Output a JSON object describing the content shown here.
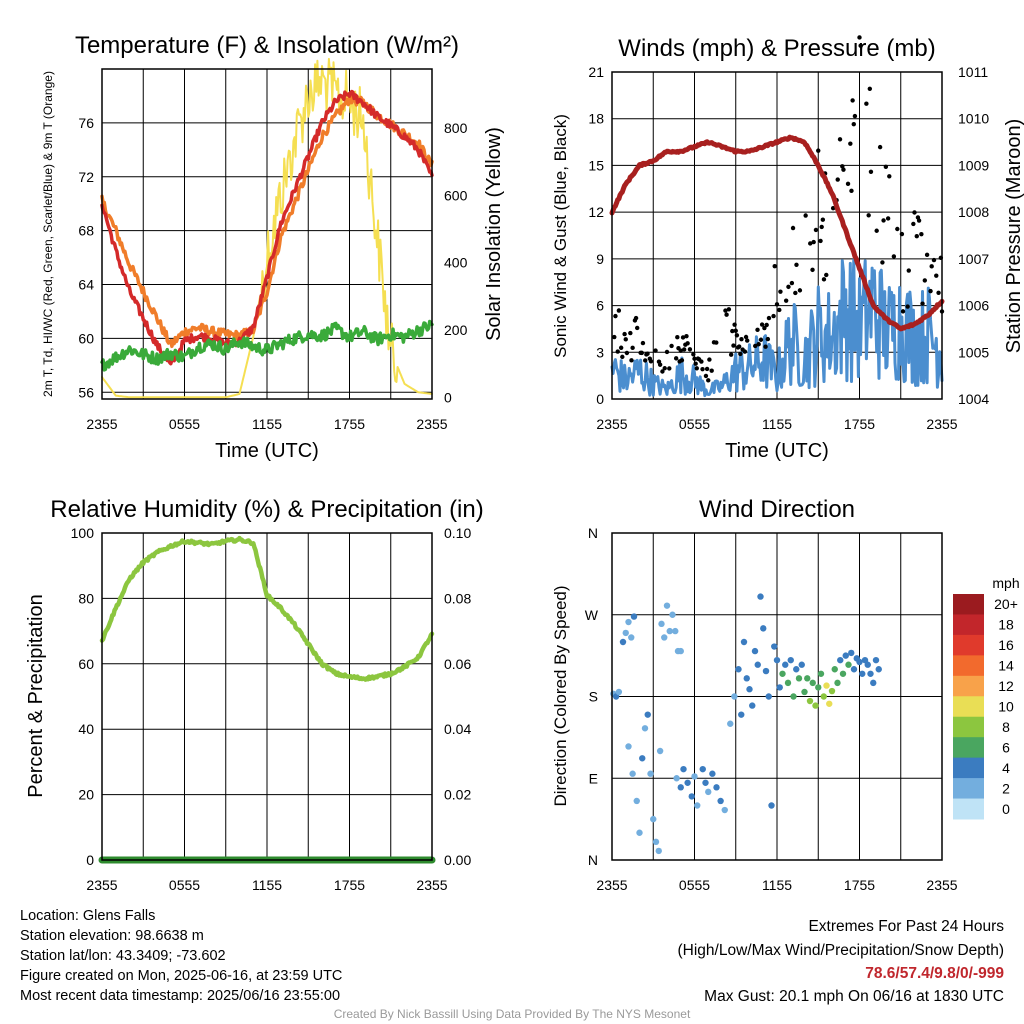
{
  "time_ticks": [
    "2355",
    "0555",
    "1155",
    "1755",
    "2355"
  ],
  "chart_data": [
    {
      "type": "line",
      "title": "Temperature (F) & Insolation (W/m²)",
      "xlabel": "Time (UTC)",
      "ylabel": "2m T, Td, HI/WC (Red, Green, Scarlet/Blue) & 9m T (Orange)",
      "y2label": "Solar Insolation (Yellow)",
      "x_hours": [
        0,
        1,
        2,
        3,
        4,
        5,
        6,
        7,
        8,
        9,
        10,
        11,
        12,
        13,
        14,
        15,
        16,
        17,
        18,
        19,
        20,
        21,
        22,
        23,
        24
      ],
      "ylim": [
        55.5,
        80
      ],
      "yticks": [
        56,
        60,
        64,
        68,
        72,
        76
      ],
      "y2lim": [
        -5,
        975
      ],
      "y2ticks": [
        0,
        200,
        400,
        600,
        800
      ],
      "grid": true,
      "series": [
        {
          "axis": "left",
          "color": "#d42a2a",
          "values": [
            70.0,
            66.5,
            63.5,
            61.5,
            59.5,
            58.0,
            59.8,
            60.2,
            60.0,
            59.6,
            59.8,
            60.8,
            64.5,
            68.5,
            71.0,
            73.5,
            76.0,
            77.6,
            78.2,
            77.5,
            76.5,
            75.8,
            75.0,
            74.0,
            72.0
          ]
        },
        {
          "axis": "left",
          "color": "#f07d2a",
          "values": [
            70.2,
            68.0,
            65.5,
            63.5,
            61.5,
            59.5,
            60.5,
            60.8,
            60.5,
            60.3,
            60.2,
            60.6,
            63.5,
            67.5,
            70.0,
            72.5,
            75.0,
            76.5,
            77.8,
            77.5,
            76.6,
            75.9,
            75.2,
            74.5,
            72.8
          ]
        },
        {
          "axis": "left",
          "color": "#3aaa3a",
          "values": [
            58.0,
            58.6,
            59.2,
            58.8,
            58.5,
            58.9,
            58.6,
            59.4,
            59.6,
            59.2,
            59.8,
            59.4,
            59.1,
            59.6,
            60.0,
            60.3,
            60.2,
            60.7,
            60.1,
            60.5,
            59.9,
            60.3,
            60.1,
            60.6,
            61.0
          ]
        },
        {
          "axis": "right",
          "color": "#f5df52",
          "values": [
            60,
            5,
            0,
            0,
            0,
            0,
            0,
            0,
            0,
            0,
            10,
            180,
            420,
            600,
            760,
            900,
            940,
            900,
            880,
            820,
            480,
            140,
            40,
            15,
            10
          ]
        }
      ]
    },
    {
      "type": "line",
      "title": "Winds (mph) & Pressure (mb)",
      "xlabel": "Time (UTC)",
      "ylabel": "Sonic Wind & Gust (Blue, Black)",
      "y2label": "Station Pressure (Maroon)",
      "x_hours": [
        0,
        1,
        2,
        3,
        4,
        5,
        6,
        7,
        8,
        9,
        10,
        11,
        12,
        13,
        14,
        15,
        16,
        17,
        18,
        19,
        20,
        21,
        22,
        23,
        24
      ],
      "ylim": [
        0,
        21
      ],
      "yticks": [
        0,
        3,
        6,
        9,
        12,
        15,
        18,
        21
      ],
      "y2lim": [
        1004,
        1011
      ],
      "y2ticks": [
        1004,
        1005,
        1006,
        1007,
        1008,
        1009,
        1010,
        1011
      ],
      "grid": true,
      "series": [
        {
          "name": "Pressure",
          "axis": "right",
          "color": "#a8201f",
          "values": [
            1008.0,
            1008.6,
            1009.0,
            1009.1,
            1009.3,
            1009.3,
            1009.4,
            1009.5,
            1009.4,
            1009.3,
            1009.3,
            1009.4,
            1009.5,
            1009.6,
            1009.5,
            1009.0,
            1008.4,
            1007.6,
            1006.8,
            1006.0,
            1005.7,
            1005.5,
            1005.6,
            1005.8,
            1006.1
          ]
        },
        {
          "name": "Wind",
          "axis": "left",
          "color": "#4b8ecf",
          "values": [
            2.0,
            1.2,
            1.8,
            1.0,
            0.6,
            1.6,
            1.2,
            0.5,
            0.8,
            1.8,
            2.0,
            2.6,
            1.5,
            3.8,
            2.6,
            4.2,
            4.0,
            5.8,
            4.6,
            6.0,
            4.2,
            5.0,
            3.8,
            4.2,
            3.0
          ]
        },
        {
          "name": "Gust",
          "axis": "left",
          "color": "#000000",
          "type": "scatter",
          "values": [
            5.5,
            3.0,
            4.2,
            2.3,
            2.6,
            3.8,
            2.3,
            1.8,
            5.0,
            3.6,
            3.2,
            4.8,
            6.8,
            8.5,
            9.8,
            12.5,
            10.5,
            13.8,
            17.5,
            14.2,
            12.2,
            8.5,
            9.2,
            8.0,
            7.5
          ]
        }
      ]
    },
    {
      "type": "line",
      "title": "Relative Humidity (%) & Precipitation (in)",
      "xlabel": "",
      "ylabel": "Percent & Precipitation",
      "x_hours": [
        0,
        1,
        2,
        3,
        4,
        5,
        6,
        7,
        8,
        9,
        10,
        11,
        12,
        13,
        14,
        15,
        16,
        17,
        18,
        19,
        20,
        21,
        22,
        23,
        24
      ],
      "ylim": [
        0,
        100
      ],
      "yticks": [
        0,
        20,
        40,
        60,
        80,
        100
      ],
      "y2lim": [
        0,
        0.1
      ],
      "y2ticks": [
        "0.00",
        "0.02",
        "0.04",
        "0.06",
        "0.08",
        "0.10"
      ],
      "grid": true,
      "series": [
        {
          "name": "RH",
          "axis": "left",
          "color": "#8cc63f",
          "values": [
            67,
            77,
            86,
            91,
            94,
            96,
            97.5,
            97,
            96.5,
            97.5,
            98,
            97,
            81,
            77,
            72,
            66,
            60,
            57,
            56,
            55.5,
            56,
            57,
            59,
            62,
            69
          ]
        },
        {
          "name": "Precipitation",
          "axis": "right",
          "color": "#2e8b2e",
          "values": [
            0,
            0,
            0,
            0,
            0,
            0,
            0,
            0,
            0,
            0,
            0,
            0,
            0,
            0,
            0,
            0,
            0,
            0,
            0,
            0,
            0,
            0,
            0,
            0,
            0
          ]
        }
      ]
    },
    {
      "type": "scatter",
      "title": "Wind Direction",
      "xlabel": "",
      "ylabel": "Direction (Colored By Speed)",
      "ytick_labels": [
        "N",
        "E",
        "S",
        "W",
        "N"
      ],
      "ylim": [
        0,
        360
      ],
      "grid": true,
      "colorbar": {
        "title": "mph",
        "labels": [
          "20+",
          "18",
          "16",
          "14",
          "12",
          "10",
          "8",
          "6",
          "4",
          "2",
          "0"
        ],
        "colors": [
          "#9b1b1f",
          "#c2262b",
          "#e03a2c",
          "#f26a2d",
          "#f8a24a",
          "#e9de55",
          "#8cc63f",
          "#4aa660",
          "#3b7cc0",
          "#73aede",
          "#bfe3f6"
        ]
      },
      "points": [
        [
          0.1,
          183,
          2
        ],
        [
          0.3,
          180,
          3
        ],
        [
          0.5,
          185,
          2
        ],
        [
          0.8,
          240,
          3
        ],
        [
          1.0,
          250,
          2
        ],
        [
          1.2,
          262,
          1
        ],
        [
          1.4,
          245,
          1
        ],
        [
          1.6,
          268,
          3
        ],
        [
          1.2,
          125,
          2
        ],
        [
          1.5,
          95,
          2
        ],
        [
          1.8,
          65,
          1
        ],
        [
          2.0,
          30,
          1
        ],
        [
          2.2,
          112,
          3
        ],
        [
          2.4,
          145,
          2
        ],
        [
          2.6,
          160,
          3
        ],
        [
          2.8,
          95,
          1
        ],
        [
          3.0,
          45,
          1
        ],
        [
          3.2,
          20,
          1
        ],
        [
          3.4,
          10,
          1
        ],
        [
          3.5,
          120,
          2
        ],
        [
          3.6,
          260,
          1
        ],
        [
          3.8,
          245,
          1
        ],
        [
          4.0,
          280,
          2
        ],
        [
          4.2,
          252,
          1
        ],
        [
          4.4,
          270,
          1
        ],
        [
          4.6,
          252,
          1
        ],
        [
          4.8,
          230,
          1
        ],
        [
          5.0,
          230,
          2
        ],
        [
          4.7,
          90,
          1
        ],
        [
          5.0,
          80,
          3
        ],
        [
          5.2,
          100,
          3
        ],
        [
          5.5,
          85,
          3
        ],
        [
          5.8,
          70,
          3
        ],
        [
          6.0,
          92,
          2
        ],
        [
          6.2,
          60,
          1
        ],
        [
          6.6,
          100,
          3
        ],
        [
          6.8,
          85,
          3
        ],
        [
          7.0,
          75,
          2
        ],
        [
          7.3,
          95,
          3
        ],
        [
          7.6,
          80,
          3
        ],
        [
          7.9,
          65,
          3
        ],
        [
          8.2,
          55,
          2
        ],
        [
          8.6,
          150,
          2
        ],
        [
          8.9,
          180,
          2
        ],
        [
          9.2,
          210,
          3
        ],
        [
          9.4,
          160,
          3
        ],
        [
          9.6,
          240,
          3
        ],
        [
          9.8,
          200,
          3
        ],
        [
          10.0,
          188,
          3
        ],
        [
          10.2,
          170,
          4
        ],
        [
          10.4,
          230,
          3
        ],
        [
          10.6,
          215,
          3
        ],
        [
          10.8,
          290,
          3
        ],
        [
          11.0,
          255,
          3
        ],
        [
          11.2,
          208,
          3
        ],
        [
          11.4,
          180,
          3
        ],
        [
          11.6,
          60,
          3
        ],
        [
          11.8,
          235,
          3
        ],
        [
          12.0,
          220,
          3
        ],
        [
          12.2,
          190,
          3
        ],
        [
          12.4,
          205,
          5
        ],
        [
          12.6,
          215,
          4
        ],
        [
          12.8,
          195,
          5
        ],
        [
          13.0,
          220,
          3
        ],
        [
          13.2,
          180,
          5
        ],
        [
          13.4,
          210,
          4
        ],
        [
          13.6,
          200,
          6
        ],
        [
          13.8,
          215,
          4
        ],
        [
          14.0,
          185,
          6
        ],
        [
          14.2,
          200,
          5
        ],
        [
          14.4,
          175,
          7
        ],
        [
          14.6,
          195,
          6
        ],
        [
          14.8,
          170,
          8
        ],
        [
          15.0,
          190,
          6
        ],
        [
          15.2,
          205,
          5
        ],
        [
          15.4,
          180,
          7
        ],
        [
          15.6,
          192,
          10
        ],
        [
          15.8,
          172,
          9
        ],
        [
          16.0,
          186,
          8
        ],
        [
          16.2,
          210,
          5
        ],
        [
          16.4,
          195,
          6
        ],
        [
          16.6,
          220,
          4
        ],
        [
          16.8,
          205,
          5
        ],
        [
          17.0,
          225,
          4
        ],
        [
          17.2,
          215,
          5
        ],
        [
          17.4,
          228,
          4
        ],
        [
          17.6,
          210,
          3
        ],
        [
          17.8,
          222,
          4
        ],
        [
          18.0,
          218,
          3
        ],
        [
          18.2,
          205,
          4
        ],
        [
          18.4,
          220,
          3
        ],
        [
          18.6,
          215,
          3
        ],
        [
          18.8,
          205,
          3
        ],
        [
          19.0,
          195,
          3
        ],
        [
          19.2,
          220,
          4
        ],
        [
          19.4,
          210,
          3
        ]
      ]
    }
  ],
  "footer_left": {
    "location": "Location: Glens Falls",
    "elevation": "Station elevation: 98.6638 m",
    "latlon": "Station lat/lon: 43.3409; -73.602",
    "created": "Figure created on Mon, 2025-06-16, at 23:59 UTC",
    "recent": "Most recent data timestamp: 2025/06/16 23:55:00"
  },
  "footer_right": {
    "title": "Extremes For Past 24 Hours",
    "subtitle": "(High/Low/Max Wind/Precipitation/Snow Depth)",
    "values": "78.6/57.4/9.8/0/-999",
    "max_gust": "Max Gust: 20.1 mph On 06/16 at 1830 UTC"
  },
  "credit": "Created By Nick Bassill Using Data Provided By The NYS Mesonet"
}
